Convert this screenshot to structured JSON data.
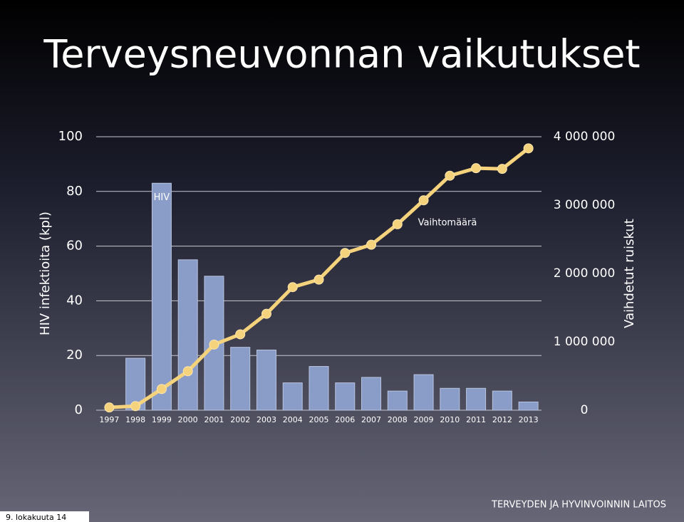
{
  "chart_data": {
    "type": "bar",
    "title": "Terveysneuvonnan vaikutukset",
    "categories": [
      "1997",
      "1998",
      "1999",
      "2000",
      "2001",
      "2002",
      "2003",
      "2004",
      "2005",
      "2006",
      "2007",
      "2008",
      "2009",
      "2010",
      "2011",
      "2012",
      "2013"
    ],
    "series": [
      {
        "name": "HIV",
        "type": "bar",
        "color": "#8a9cc8",
        "values": [
          0,
          19,
          83,
          55,
          49,
          23,
          22,
          10,
          16,
          10,
          12,
          7,
          13,
          8,
          8,
          7,
          3
        ]
      },
      {
        "name": "Vaihtomäärä",
        "type": "line",
        "axis": "y2",
        "color": "#f5d27c",
        "values": [
          40000,
          60000,
          310000,
          570000,
          960000,
          1110000,
          1410000,
          1800000,
          1910000,
          2300000,
          2420000,
          2720000,
          3070000,
          3430000,
          3540000,
          3530000,
          3830000
        ]
      }
    ],
    "ylabel": "HIV infektioita (kpl)",
    "y2label": "Vaihdetut ruiskut",
    "ylim": [
      0,
      100
    ],
    "yticks": [
      0,
      20,
      40,
      60,
      80,
      100
    ],
    "y2lim": [
      0,
      4000000
    ],
    "y2ticks": [
      0,
      {
        "value": 1000000,
        "label": "1 000 000"
      },
      {
        "value": 2000000,
        "label": "2 000 000"
      },
      {
        "value": 3000000,
        "label": "3 000 000"
      },
      {
        "value": 4000000,
        "label": "4 000 000"
      }
    ],
    "grid": true
  },
  "footer": "TERVEYDEN JA HYVINVOINNIN LAITOS",
  "date": "9. lokakuuta 14"
}
